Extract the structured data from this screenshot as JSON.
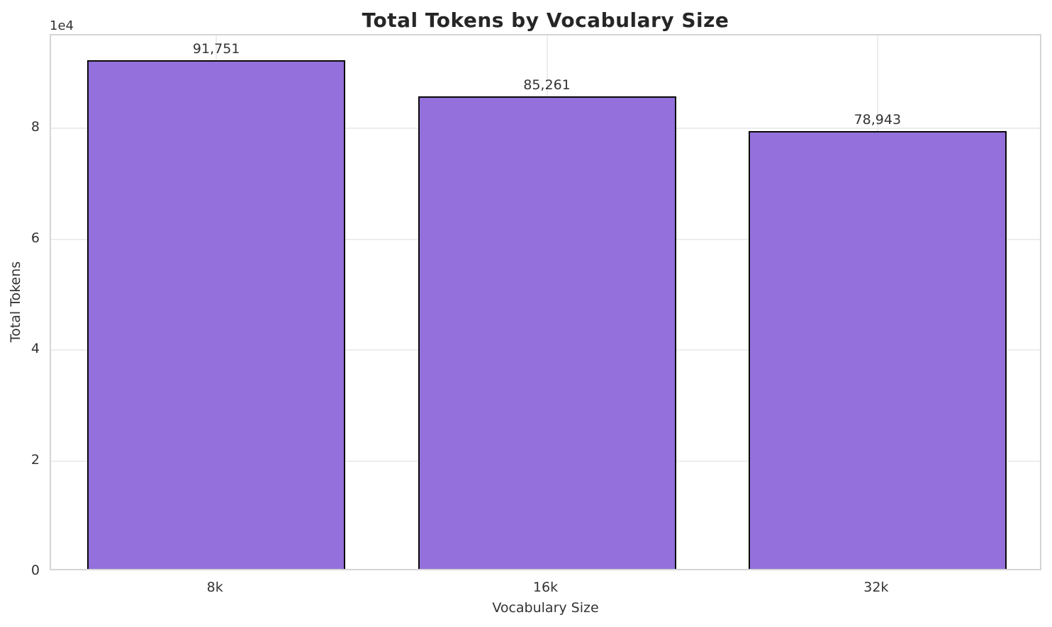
{
  "chart_data": {
    "type": "bar",
    "title": "Total Tokens by Vocabulary Size",
    "xlabel": "Vocabulary Size",
    "ylabel": "Total Tokens",
    "categories": [
      "8k",
      "16k",
      "32k"
    ],
    "values": [
      91751,
      85261,
      78943
    ],
    "value_labels": [
      "91,751",
      "85,261",
      "78,943"
    ],
    "ylim": [
      0,
      96750
    ],
    "yticks": {
      "values": [
        0,
        20000,
        40000,
        60000,
        80000
      ],
      "labels": [
        "0",
        "2",
        "4",
        "6",
        "8"
      ],
      "offset_text": "1e4"
    },
    "grid": true,
    "legend_position": "none",
    "colors": {
      "bar_fill": "#9370db",
      "bar_edge": "#0a0a0a",
      "grid": "#ededed",
      "spine": "#d5d5d5",
      "text": "#333333",
      "title": "#262626",
      "background": "#ffffff"
    }
  }
}
